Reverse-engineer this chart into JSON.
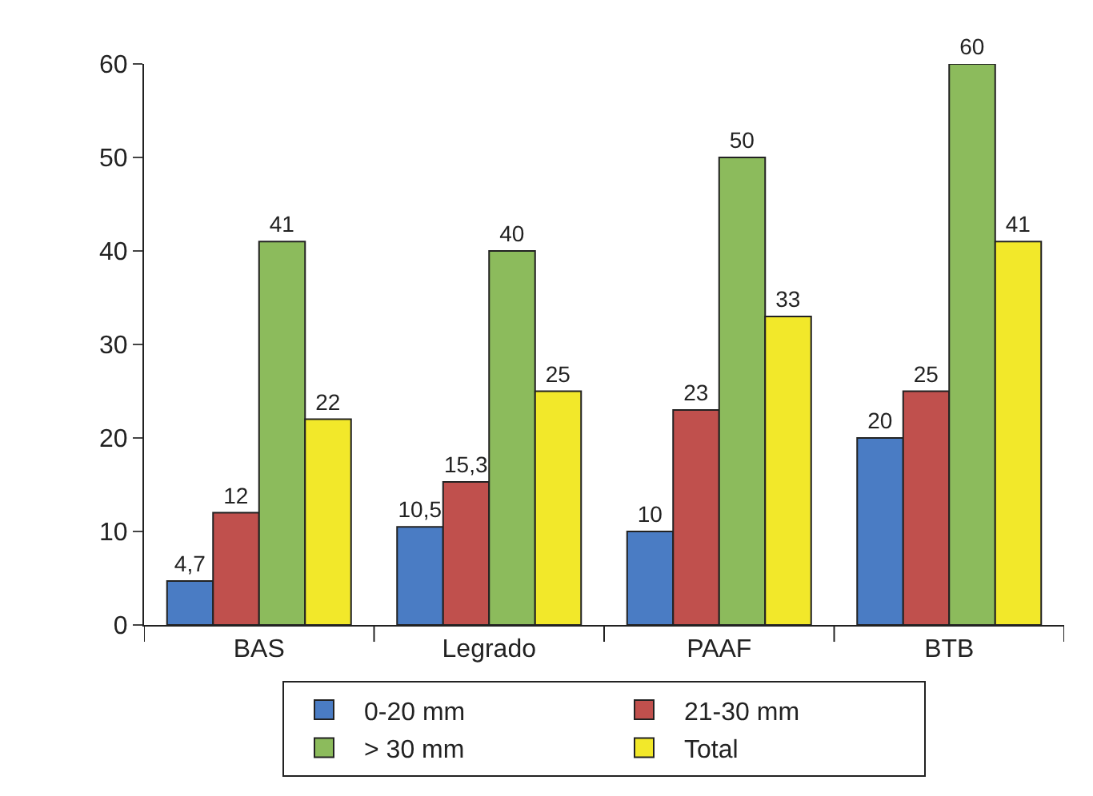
{
  "chart_data": {
    "type": "bar",
    "categories": [
      "BAS",
      "Legrado",
      "PAAF",
      "BTB"
    ],
    "series": [
      {
        "name": "0-20 mm",
        "color": "#4a7cc4",
        "values": [
          4.7,
          10.5,
          10,
          20
        ],
        "value_labels": [
          "4,7",
          "10,5",
          "10",
          "20"
        ]
      },
      {
        "name": "21-30 mm",
        "color": "#c0504d",
        "values": [
          12,
          15.3,
          23,
          25
        ],
        "value_labels": [
          "12",
          "15,3",
          "23",
          "25"
        ]
      },
      {
        "name": "> 30 mm",
        "color": "#8cbb5c",
        "values": [
          41,
          40,
          50,
          60
        ],
        "value_labels": [
          "41",
          "40",
          "50",
          "60"
        ]
      },
      {
        "name": "Total",
        "color": "#f2e82a",
        "values": [
          22,
          25,
          33,
          41
        ],
        "value_labels": [
          "22",
          "25",
          "33",
          "41"
        ]
      }
    ],
    "ylim": [
      0,
      60
    ],
    "yticks": [
      0,
      10,
      20,
      30,
      40,
      50,
      60
    ],
    "grid": false,
    "legend": "bottom"
  }
}
